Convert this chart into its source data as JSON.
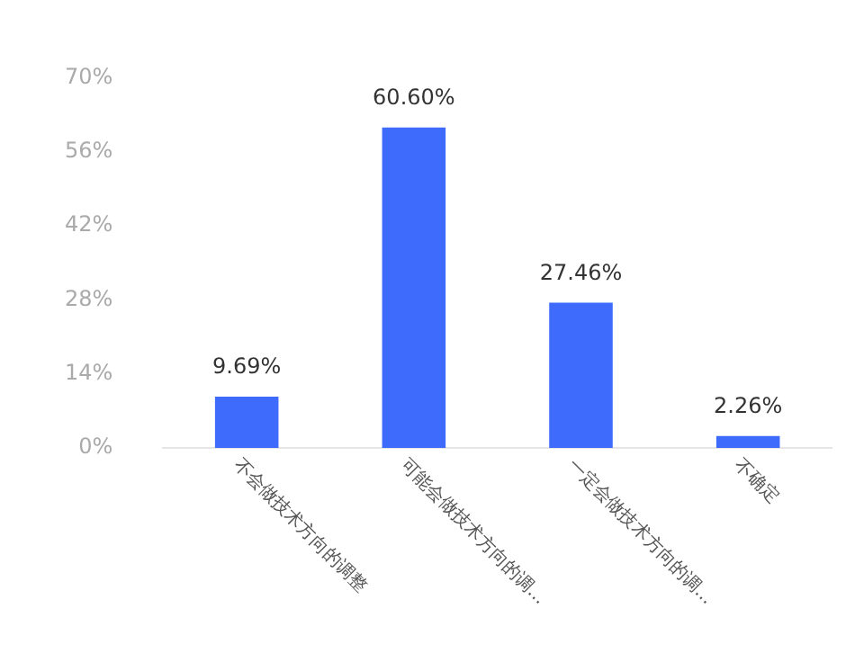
{
  "chart_data": {
    "type": "bar",
    "categories": [
      "不会做技术方向的调整",
      "可能会做技术方向的调...",
      "一定会做技术方向的调...",
      "不确定"
    ],
    "values": [
      9.69,
      60.6,
      27.46,
      2.26
    ],
    "value_labels": [
      "9.69%",
      "60.60%",
      "27.46%",
      "2.26%"
    ],
    "color": "#3e6bfb",
    "ylim": [
      0,
      70
    ],
    "yticks": [
      {
        "value": 0,
        "label": "0%"
      },
      {
        "value": 14,
        "label": "14%"
      },
      {
        "value": 28,
        "label": "28%"
      },
      {
        "value": 42,
        "label": "42%"
      },
      {
        "value": 56,
        "label": "56%"
      },
      {
        "value": 70,
        "label": "70%"
      }
    ],
    "grid": false,
    "legend": false
  }
}
